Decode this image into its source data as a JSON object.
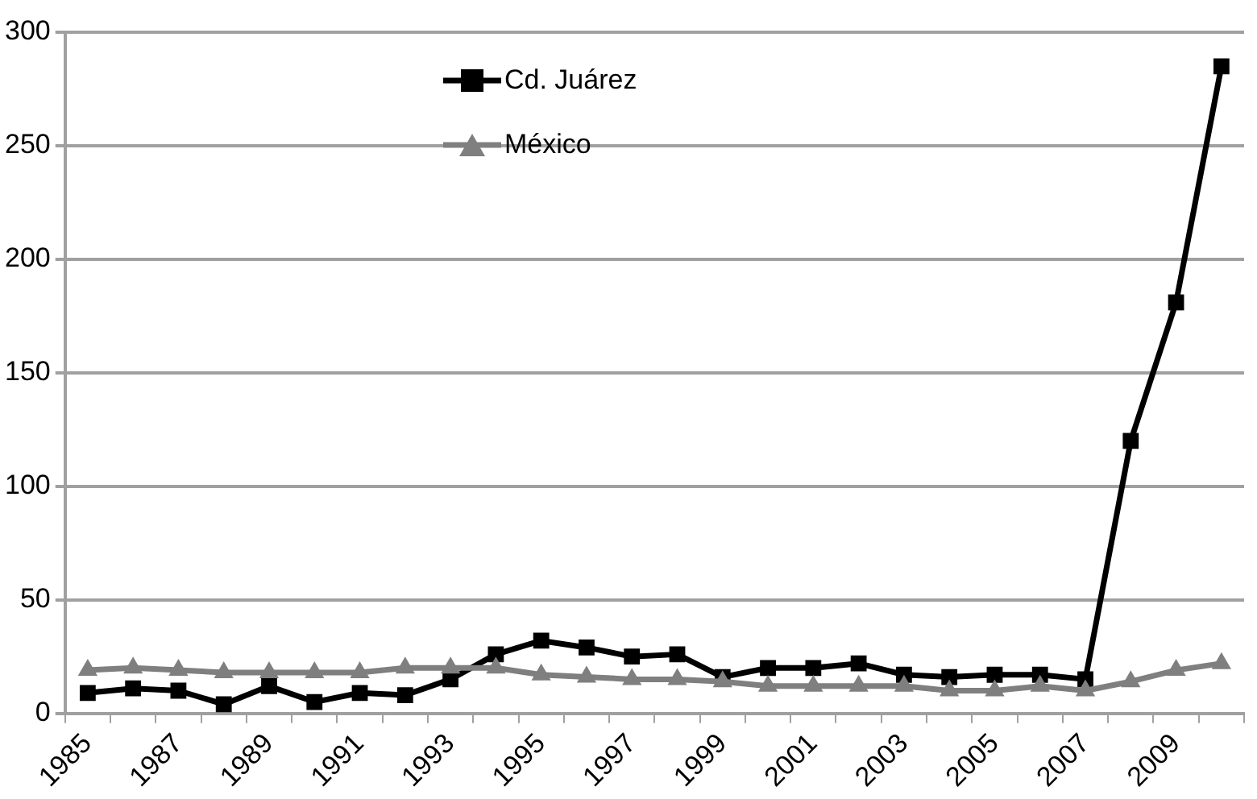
{
  "chart_data": {
    "type": "line",
    "categories": [
      "1985",
      null,
      "1987",
      null,
      "1989",
      null,
      "1991",
      null,
      "1993",
      null,
      "1995",
      null,
      "1997",
      null,
      "1999",
      null,
      "2001",
      null,
      "2003",
      null,
      "2005",
      null,
      "2007",
      null,
      "2009",
      null
    ],
    "series": [
      {
        "name": "Cd. Juárez",
        "color": "#000000",
        "marker": "square",
        "values": [
          9,
          11,
          10,
          4,
          12,
          5,
          9,
          8,
          15,
          26,
          32,
          29,
          25,
          26,
          16,
          20,
          20,
          22,
          17,
          16,
          17,
          17,
          15,
          120,
          181,
          285
        ]
      },
      {
        "name": "México",
        "color": "#7f7f7f",
        "marker": "triangle",
        "values": [
          19,
          20,
          19,
          18,
          18,
          18,
          18,
          20,
          20,
          20,
          17,
          16,
          15,
          15,
          14,
          12,
          12,
          12,
          12,
          10,
          10,
          12,
          10,
          14,
          19,
          22
        ]
      }
    ],
    "ylim": [
      0,
      300
    ],
    "yticks": [
      0,
      50,
      100,
      150,
      200,
      250,
      300
    ],
    "grid": "y",
    "legend": "top left",
    "line_style": "solid"
  }
}
